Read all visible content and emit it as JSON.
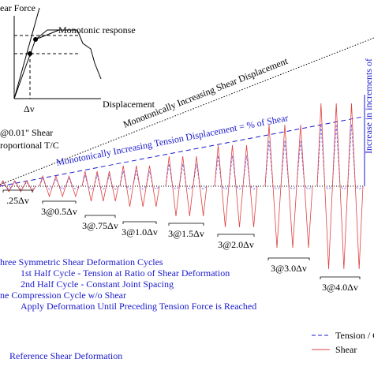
{
  "inset": {
    "y_label": "ear Force",
    "curve_label": "Monotonic response",
    "x_tick": "Δv",
    "x_label": "Displacement"
  },
  "shear_line_label": "Monotonically Increasing Shear Displacement",
  "tension_line_label": "Monotonically Increasing Tension Displacement = % of Shear",
  "side_label": "Increase in increments of",
  "initial": [
    "@0.01\" Shear",
    "roportional T/C"
  ],
  "groups": [
    ".25Δv",
    "3@0.5Δv",
    "3@.75Δv",
    "3@1.0Δv",
    "3@1.5Δv",
    "3@2.0Δv",
    "3@3.0Δv",
    "3@4.0Δv"
  ],
  "notes": [
    "hree Symmetric Shear Deformation Cycles",
    "1st Half Cycle - Tension at Ratio of Shear Deformation",
    "2nd Half Cycle - Constant Joint Spacing",
    "ne Compression Cycle w/o Shear",
    "Apply Deformation Until Preceding Tension Force is Reached"
  ],
  "legend": [
    "Tension / Co",
    "Shear"
  ],
  "footer": "Reference Shear Deformation"
}
